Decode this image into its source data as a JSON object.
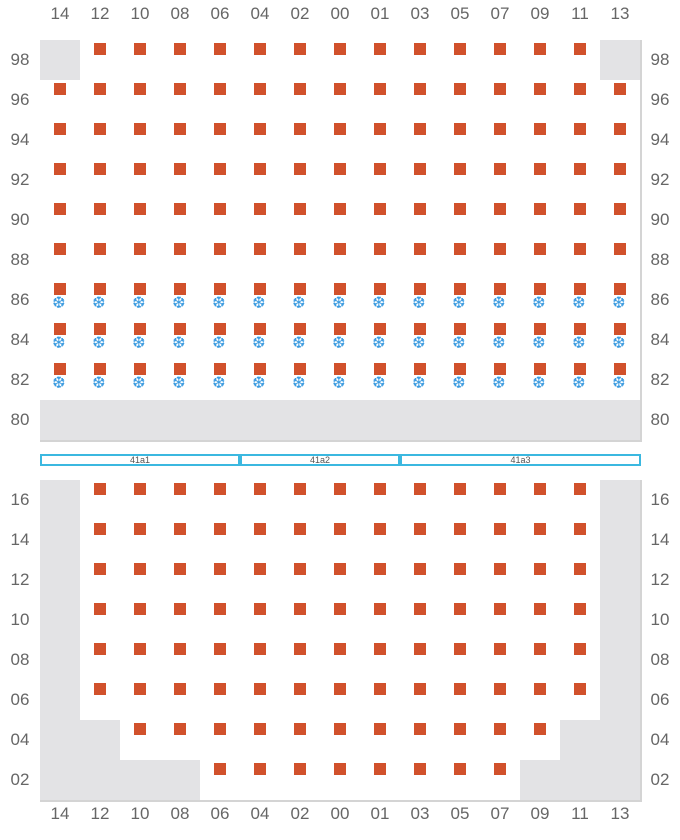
{
  "columns": [
    "14",
    "12",
    "10",
    "08",
    "06",
    "04",
    "02",
    "00",
    "01",
    "03",
    "05",
    "07",
    "09",
    "11",
    "13"
  ],
  "top_block": {
    "rows": [
      {
        "label": "98",
        "occupied": [
          "12",
          "10",
          "08",
          "06",
          "04",
          "02",
          "00",
          "01",
          "03",
          "05",
          "07",
          "09",
          "11"
        ],
        "frozen": [],
        "unavailable": [
          "14",
          "13"
        ]
      },
      {
        "label": "96",
        "occupied": [
          "14",
          "12",
          "10",
          "08",
          "06",
          "04",
          "02",
          "00",
          "01",
          "03",
          "05",
          "07",
          "09",
          "11",
          "13"
        ],
        "frozen": [],
        "unavailable": []
      },
      {
        "label": "94",
        "occupied": [
          "14",
          "12",
          "10",
          "08",
          "06",
          "04",
          "02",
          "00",
          "01",
          "03",
          "05",
          "07",
          "09",
          "11",
          "13"
        ],
        "frozen": [],
        "unavailable": []
      },
      {
        "label": "92",
        "occupied": [
          "14",
          "12",
          "10",
          "08",
          "06",
          "04",
          "02",
          "00",
          "01",
          "03",
          "05",
          "07",
          "09",
          "11",
          "13"
        ],
        "frozen": [],
        "unavailable": []
      },
      {
        "label": "90",
        "occupied": [
          "14",
          "12",
          "10",
          "08",
          "06",
          "04",
          "02",
          "00",
          "01",
          "03",
          "05",
          "07",
          "09",
          "11",
          "13"
        ],
        "frozen": [],
        "unavailable": []
      },
      {
        "label": "88",
        "occupied": [
          "14",
          "12",
          "10",
          "08",
          "06",
          "04",
          "02",
          "00",
          "01",
          "03",
          "05",
          "07",
          "09",
          "11",
          "13"
        ],
        "frozen": [],
        "unavailable": []
      },
      {
        "label": "86",
        "occupied": [
          "14",
          "12",
          "10",
          "08",
          "06",
          "04",
          "02",
          "00",
          "01",
          "03",
          "05",
          "07",
          "09",
          "11",
          "13"
        ],
        "frozen": [
          "14",
          "12",
          "10",
          "08",
          "06",
          "04",
          "02",
          "00",
          "01",
          "03",
          "05",
          "07",
          "09",
          "11",
          "13"
        ],
        "unavailable": []
      },
      {
        "label": "84",
        "occupied": [
          "14",
          "12",
          "10",
          "08",
          "06",
          "04",
          "02",
          "00",
          "01",
          "03",
          "05",
          "07",
          "09",
          "11",
          "13"
        ],
        "frozen": [
          "14",
          "12",
          "10",
          "08",
          "06",
          "04",
          "02",
          "00",
          "01",
          "03",
          "05",
          "07",
          "09",
          "11",
          "13"
        ],
        "unavailable": []
      },
      {
        "label": "82",
        "occupied": [
          "14",
          "12",
          "10",
          "08",
          "06",
          "04",
          "02",
          "00",
          "01",
          "03",
          "05",
          "07",
          "09",
          "11",
          "13"
        ],
        "frozen": [
          "14",
          "12",
          "10",
          "08",
          "06",
          "04",
          "02",
          "00",
          "01",
          "03",
          "05",
          "07",
          "09",
          "11",
          "13"
        ],
        "unavailable": []
      },
      {
        "label": "80",
        "occupied": [],
        "frozen": [],
        "unavailable": [
          "14",
          "12",
          "10",
          "08",
          "06",
          "04",
          "02",
          "00",
          "01",
          "03",
          "05",
          "07",
          "09",
          "11",
          "13"
        ]
      }
    ]
  },
  "hatch_covers": [
    {
      "label": "41a1",
      "from": "14",
      "to": "06"
    },
    {
      "label": "41a2",
      "from": "04",
      "to": "01"
    },
    {
      "label": "41a3",
      "from": "03",
      "to": "13"
    }
  ],
  "bottom_block": {
    "rows": [
      {
        "label": "16",
        "occupied": [
          "12",
          "10",
          "08",
          "06",
          "04",
          "02",
          "00",
          "01",
          "03",
          "05",
          "07",
          "09",
          "11"
        ],
        "frozen": [],
        "unavailable": [
          "14",
          "13"
        ]
      },
      {
        "label": "14",
        "occupied": [
          "12",
          "10",
          "08",
          "06",
          "04",
          "02",
          "00",
          "01",
          "03",
          "05",
          "07",
          "09",
          "11"
        ],
        "frozen": [],
        "unavailable": [
          "14",
          "13"
        ]
      },
      {
        "label": "12",
        "occupied": [
          "12",
          "10",
          "08",
          "06",
          "04",
          "02",
          "00",
          "01",
          "03",
          "05",
          "07",
          "09",
          "11"
        ],
        "frozen": [],
        "unavailable": [
          "14",
          "13"
        ]
      },
      {
        "label": "10",
        "occupied": [
          "12",
          "10",
          "08",
          "06",
          "04",
          "02",
          "00",
          "01",
          "03",
          "05",
          "07",
          "09",
          "11"
        ],
        "frozen": [],
        "unavailable": [
          "14",
          "13"
        ]
      },
      {
        "label": "08",
        "occupied": [
          "12",
          "10",
          "08",
          "06",
          "04",
          "02",
          "00",
          "01",
          "03",
          "05",
          "07",
          "09",
          "11"
        ],
        "frozen": [],
        "unavailable": [
          "14",
          "13"
        ]
      },
      {
        "label": "06",
        "occupied": [
          "12",
          "10",
          "08",
          "06",
          "04",
          "02",
          "00",
          "01",
          "03",
          "05",
          "07",
          "09",
          "11"
        ],
        "frozen": [],
        "unavailable": [
          "14",
          "13"
        ]
      },
      {
        "label": "04",
        "occupied": [
          "10",
          "08",
          "06",
          "04",
          "02",
          "00",
          "01",
          "03",
          "05",
          "07",
          "09"
        ],
        "frozen": [],
        "unavailable": [
          "14",
          "12",
          "11",
          "13"
        ]
      },
      {
        "label": "02",
        "occupied": [
          "06",
          "04",
          "02",
          "00",
          "01",
          "03",
          "05",
          "07"
        ],
        "frozen": [],
        "unavailable": [
          "14",
          "12",
          "10",
          "08",
          "09",
          "11",
          "13"
        ]
      }
    ]
  },
  "symbols": {
    "occupied": "orange-square",
    "frozen": "❆"
  },
  "colors": {
    "occupied": "#d1512b",
    "frozen": "#3b9be0",
    "unavailable": "#e3e3e5",
    "grid": "#d4d4d4",
    "hatch": "#3bb8e0",
    "label": "#666666"
  }
}
